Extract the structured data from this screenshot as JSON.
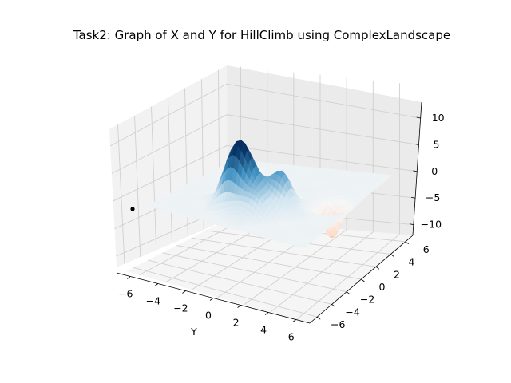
{
  "chart_data": {
    "type": "surface3d",
    "title": "Task2: Graph of X and Y for HillClimb using ComplexLandscape",
    "xlabel": "",
    "ylabel": "Y",
    "zlabel": "",
    "y_axis": {
      "ticks": [
        -6,
        -4,
        -2,
        0,
        2,
        4,
        6
      ],
      "range": [
        -7,
        7
      ]
    },
    "x_axis": {
      "ticks": [
        -6,
        -4,
        -2,
        0,
        2,
        4,
        6
      ],
      "range": [
        -7,
        7
      ]
    },
    "z_axis": {
      "ticks": [
        -10,
        -5,
        0,
        5,
        10
      ],
      "range": [
        -12,
        13
      ]
    },
    "colormap": "RdBu",
    "colormap_stops": [
      "#67001f",
      "#d6604d",
      "#fddbc7",
      "#f7f7f7",
      "#d1e5f0",
      "#4393c3",
      "#053061"
    ],
    "features": [
      {
        "kind": "peak",
        "x": -2.5,
        "y": -1.0,
        "z": 12
      },
      {
        "kind": "peak",
        "x": -1.5,
        "y": 1.5,
        "z": 6.5
      },
      {
        "kind": "peak",
        "x": -3.5,
        "y": 0.5,
        "z": 4
      },
      {
        "kind": "trough",
        "x": 3.5,
        "y": -4.0,
        "z": -10
      },
      {
        "kind": "trough",
        "x": 0.5,
        "y": 4.5,
        "z": -6
      }
    ],
    "points": [
      {
        "label": "hill-climb position",
        "x": -6,
        "y": -6,
        "z": 0,
        "color": "#000000"
      }
    ],
    "grid": true
  }
}
